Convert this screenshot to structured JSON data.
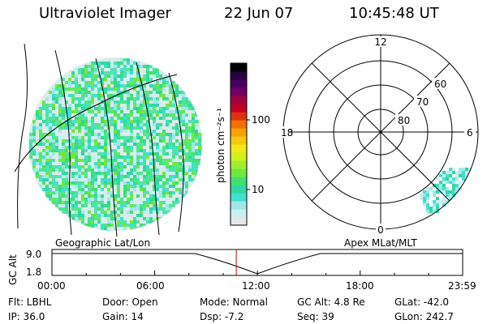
{
  "header": {
    "instrument": "Ultraviolet Imager",
    "date": "22 Jun 07",
    "time": "10:45:48 UT"
  },
  "colorbar": {
    "unit_label": "photon cm⁻²s⁻¹",
    "tick_100": "100",
    "tick_10": "10",
    "colors": [
      "#e6e6e6",
      "#c8f0f0",
      "#a0e8e8",
      "#40e0d0",
      "#30d8a0",
      "#40e070",
      "#70e840",
      "#a0f030",
      "#d0f020",
      "#f0e818",
      "#f8c810",
      "#f8a008",
      "#f07000",
      "#e03010",
      "#c00020",
      "#a00040",
      "#700060",
      "#480060",
      "#280040",
      "#000000"
    ]
  },
  "left_panel": {
    "label": "Geographic Lat/Lon"
  },
  "right_panel": {
    "label": "Apex MLat/MLT",
    "mlt_12": "12",
    "mlt_18": "18",
    "mlt_6": "6",
    "mlt_0": "0",
    "lat_60": "60",
    "lat_70": "70",
    "lat_80": "80"
  },
  "gc_alt": {
    "axis_label": "GC Alt",
    "y_max": "9.0",
    "y_min": "1.8",
    "x_ticks": [
      "00:00",
      "06:00",
      "12:00",
      "18:00",
      "23:59"
    ],
    "marker_time_hours": 10.763
  },
  "info": {
    "filter": "Flt: LBHL",
    "door": "Door: Open",
    "mode": "Mode: Normal",
    "gc_alt": "GC Alt: 4.8 Re",
    "glat": "GLat: -42.0",
    "ip": "IP: 36.0",
    "gain": "Gain: 14",
    "dsp": "Dsp:   -7.2",
    "seq": "Seq: 39",
    "glon": "GLon: 242.7"
  }
}
